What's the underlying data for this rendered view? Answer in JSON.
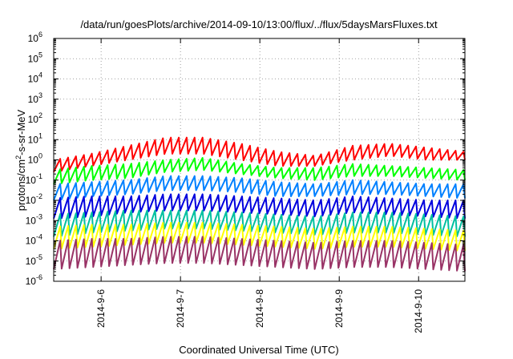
{
  "chart_data": {
    "type": "line",
    "title": "/data/run/goesPlots/archive/2014-09-10/13:00/flux/../flux/5daysMarsFluxes.txt",
    "xlabel": "Coordinated Universal Time (UTC)",
    "ylabel": {
      "prefix": "protons/cm",
      "sup": "2",
      "suffix": "-s-sr-MeV"
    },
    "yscale": "log",
    "ylim_exponent": [
      -6,
      6
    ],
    "y_tick_labels": [
      {
        "base": "10",
        "exp": "-6"
      },
      {
        "base": "10",
        "exp": "-5"
      },
      {
        "base": "10",
        "exp": "-4"
      },
      {
        "base": "10",
        "exp": "-3"
      },
      {
        "base": "10",
        "exp": "-2"
      },
      {
        "base": "10",
        "exp": "-1"
      },
      {
        "base": "10",
        "exp": "0"
      },
      {
        "base": "10",
        "exp": "1"
      },
      {
        "base": "10",
        "exp": "2"
      },
      {
        "base": "10",
        "exp": "3"
      },
      {
        "base": "10",
        "exp": "4"
      },
      {
        "base": "10",
        "exp": "5"
      },
      {
        "base": "10",
        "exp": "6"
      }
    ],
    "xlim": [
      "2014-09-05 09:40",
      "2014-09-10 14:00"
    ],
    "x_ticks": [
      {
        "label": "2014-9-6",
        "value": "2014-09-06 00:00"
      },
      {
        "label": "2014-9-7",
        "value": "2014-09-07 00:00"
      },
      {
        "label": "2014-9-8",
        "value": "2014-09-08 00:00"
      },
      {
        "label": "2014-9-9",
        "value": "2014-09-09 00:00"
      },
      {
        "label": "2014-9-10",
        "value": "2014-09-10 00:00"
      }
    ],
    "grid": true,
    "legend": "none",
    "series": [
      {
        "color": "#ff0000",
        "min_exp": [
          -0.6,
          -0.3,
          0.0,
          0.3,
          0.3,
          0.0,
          -0.3,
          -0.3,
          0.0,
          0.2,
          0.0,
          0.0
        ],
        "max_exp": [
          0.0,
          0.3,
          0.7,
          1.1,
          1.1,
          0.8,
          0.4,
          0.2,
          0.7,
          0.8,
          0.6,
          0.4
        ]
      },
      {
        "color": "#00ff00",
        "min_exp": [
          -1.2,
          -1.0,
          -0.9,
          -0.6,
          -0.5,
          -0.7,
          -0.9,
          -1.0,
          -0.8,
          -0.8,
          -0.9,
          -1.0
        ],
        "max_exp": [
          -0.5,
          -0.3,
          -0.2,
          0.0,
          0.1,
          -0.2,
          -0.4,
          -0.4,
          -0.2,
          -0.3,
          -0.4,
          -0.5
        ]
      },
      {
        "color": "#0080ff",
        "min_exp": [
          -2.0,
          -1.8,
          -1.7,
          -1.5,
          -1.5,
          -1.6,
          -1.8,
          -1.8,
          -1.7,
          -1.7,
          -1.8,
          -1.9
        ],
        "max_exp": [
          -1.2,
          -1.1,
          -1.0,
          -0.8,
          -0.8,
          -0.9,
          -1.1,
          -1.2,
          -1.0,
          -1.1,
          -1.2,
          -1.2
        ]
      },
      {
        "color": "#0000dd",
        "min_exp": [
          -2.9,
          -2.8,
          -2.6,
          -2.5,
          -2.5,
          -2.6,
          -2.7,
          -2.8,
          -2.6,
          -2.7,
          -2.8,
          -2.9
        ],
        "max_exp": [
          -1.9,
          -1.8,
          -1.8,
          -1.7,
          -1.7,
          -1.8,
          -1.9,
          -2.0,
          -1.8,
          -1.9,
          -2.0,
          -2.0
        ]
      },
      {
        "color": "#00c0a0",
        "min_exp": [
          -3.8,
          -3.6,
          -3.5,
          -3.4,
          -3.4,
          -3.5,
          -3.6,
          -3.7,
          -3.6,
          -3.6,
          -3.7,
          -3.8
        ],
        "max_exp": [
          -2.7,
          -2.6,
          -2.5,
          -2.5,
          -2.5,
          -2.6,
          -2.7,
          -2.8,
          -2.6,
          -2.6,
          -2.7,
          -2.8
        ]
      },
      {
        "color": "#ffff00",
        "min_exp": [
          -4.4,
          -4.3,
          -4.2,
          -4.1,
          -4.1,
          -4.2,
          -4.3,
          -4.4,
          -4.3,
          -4.3,
          -4.4,
          -4.5
        ],
        "max_exp": [
          -3.3,
          -3.2,
          -3.2,
          -3.1,
          -3.1,
          -3.2,
          -3.3,
          -3.4,
          -3.3,
          -3.3,
          -3.4,
          -3.5
        ]
      },
      {
        "color": "#993366",
        "min_exp": [
          -5.4,
          -5.3,
          -5.2,
          -5.1,
          -5.1,
          -5.2,
          -5.3,
          -5.4,
          -5.3,
          -5.3,
          -5.4,
          -5.5
        ],
        "max_exp": [
          -4.0,
          -3.9,
          -3.9,
          -3.8,
          -3.8,
          -3.9,
          -4.0,
          -4.1,
          -4.0,
          -4.0,
          -4.1,
          -4.2
        ]
      }
    ],
    "cycles": 52
  }
}
